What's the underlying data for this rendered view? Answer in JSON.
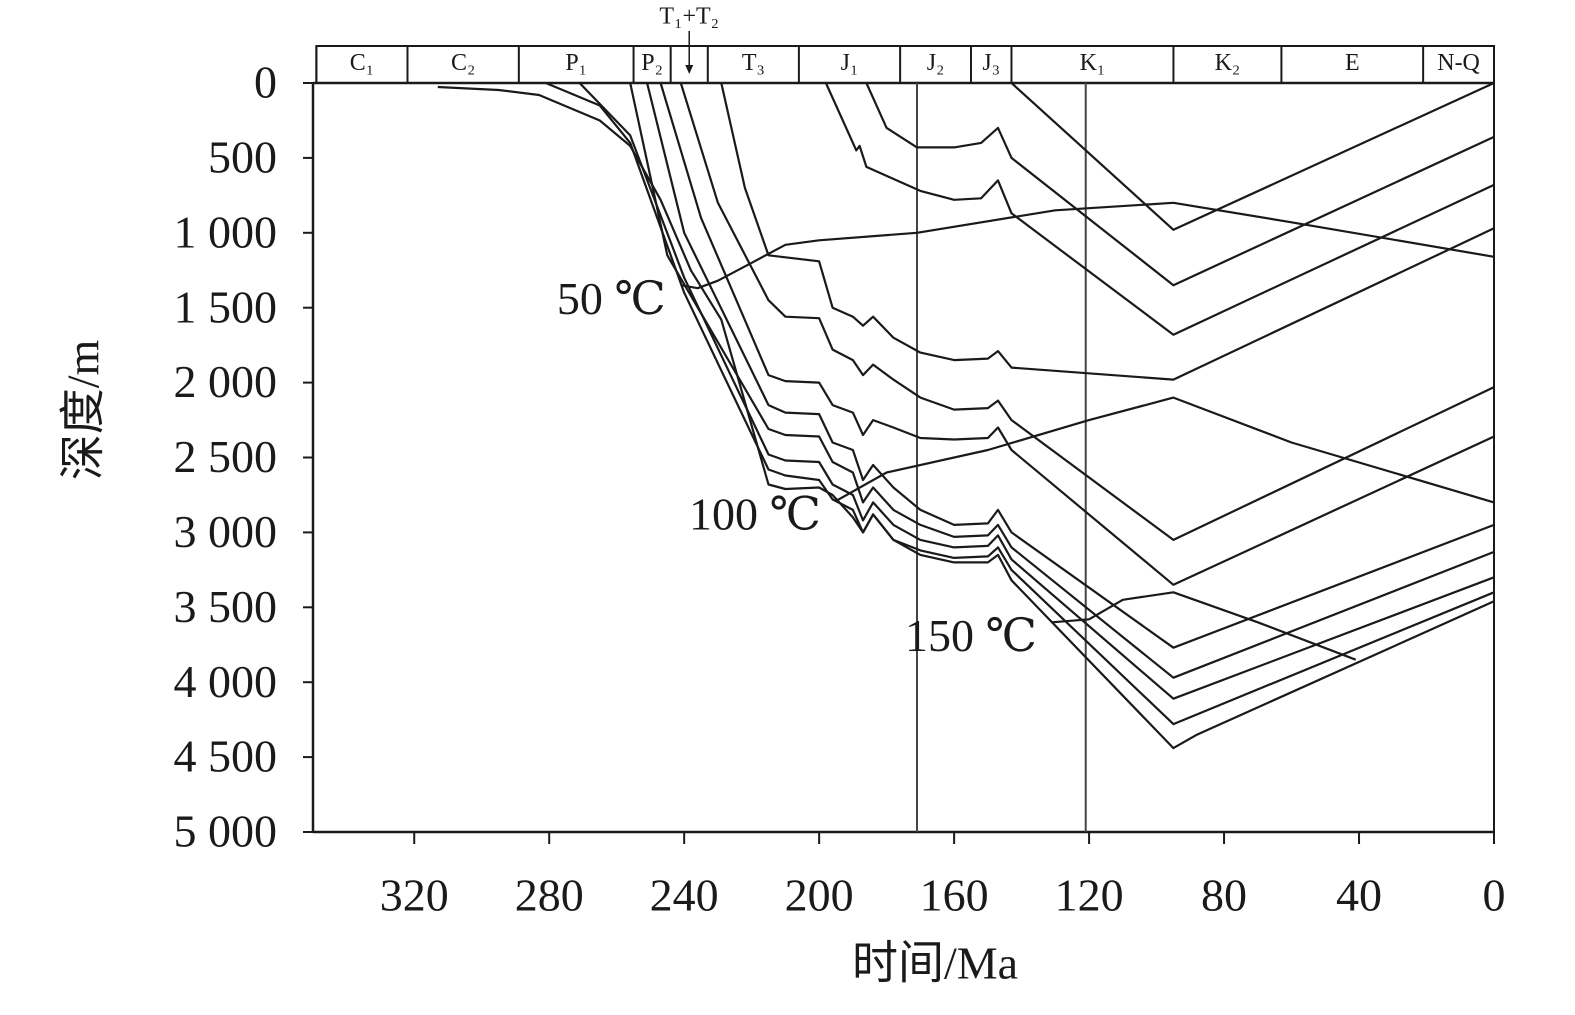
{
  "chart_data": {
    "type": "line",
    "x_label": "时间/Ma",
    "y_label": "深度/m",
    "xlim": [
      350,
      0
    ],
    "ylim": [
      0,
      5000
    ],
    "y_inverted": true,
    "xticks": [
      320,
      280,
      240,
      200,
      160,
      120,
      80,
      40,
      0
    ],
    "yticks": [
      0,
      500,
      {
        "value": 1000,
        "label": "1 000"
      },
      {
        "value": 1500,
        "label": "1 500"
      },
      {
        "value": 2000,
        "label": "2 000"
      },
      {
        "value": 2500,
        "label": "2 500"
      },
      {
        "value": 3000,
        "label": "3 000"
      },
      {
        "value": 3500,
        "label": "3 500"
      },
      {
        "value": 4000,
        "label": "4 000"
      },
      {
        "value": 4500,
        "label": "4 500"
      },
      {
        "value": 5000,
        "label": "5 000"
      }
    ],
    "stage_names": [
      "C₁",
      "C₂",
      "P₁",
      "P₂",
      "T₁+T₂",
      "T₃",
      "J₁",
      "J₂",
      "J₃",
      "K₁",
      "K₂",
      "E",
      "N-Q"
    ],
    "stage_boundaries": [
      349,
      322,
      289,
      255,
      244,
      233,
      206,
      176,
      155,
      143,
      95,
      63,
      21,
      0
    ],
    "reference_lines_x": [
      171,
      121
    ],
    "color": "#1a1a1a",
    "burial_curves": [
      {
        "x": [
          143,
          95,
          0
        ],
        "values": [
          0,
          980,
          0
        ]
      },
      {
        "x": [
          186,
          180,
          171,
          160,
          152,
          147,
          143,
          95,
          0
        ],
        "values": [
          0,
          300,
          430,
          430,
          400,
          300,
          500,
          1350,
          360
        ]
      },
      {
        "x": [
          198,
          189,
          188,
          186,
          180,
          170,
          160,
          152,
          147,
          143,
          95,
          0
        ],
        "values": [
          0,
          450,
          420,
          560,
          620,
          720,
          780,
          770,
          650,
          870,
          1680,
          680
        ]
      },
      {
        "x": [
          229,
          222,
          215,
          200,
          196,
          190,
          187,
          184,
          178,
          170,
          160,
          150,
          147,
          143,
          95,
          0
        ],
        "values": [
          0,
          700,
          1150,
          1190,
          1500,
          1560,
          1620,
          1560,
          1700,
          1800,
          1850,
          1840,
          1790,
          1900,
          1980,
          970
        ]
      },
      {
        "x": [
          241,
          230,
          215,
          210,
          200,
          196,
          190,
          187,
          184,
          178,
          170,
          160,
          150,
          147,
          143,
          95,
          0
        ],
        "values": [
          0,
          800,
          1450,
          1560,
          1570,
          1780,
          1850,
          1950,
          1880,
          1980,
          2100,
          2180,
          2170,
          2120,
          2250,
          3050,
          2030
        ]
      },
      {
        "x": [
          247,
          235,
          215,
          210,
          200,
          196,
          190,
          187,
          184,
          178,
          170,
          160,
          150,
          147,
          143,
          95,
          0
        ],
        "values": [
          0,
          900,
          1950,
          1990,
          2000,
          2150,
          2200,
          2350,
          2250,
          2300,
          2370,
          2380,
          2370,
          2300,
          2450,
          3350,
          2360
        ]
      },
      {
        "x": [
          251,
          240,
          215,
          210,
          200,
          196,
          190,
          187,
          184,
          178,
          170,
          160,
          150,
          147,
          143,
          95,
          0
        ],
        "values": [
          0,
          1000,
          2150,
          2200,
          2210,
          2400,
          2450,
          2650,
          2550,
          2700,
          2850,
          2950,
          2940,
          2850,
          3000,
          3770,
          2950
        ]
      },
      {
        "x": [
          256,
          245,
          215,
          210,
          200,
          196,
          190,
          187,
          184,
          178,
          170,
          160,
          150,
          147,
          143,
          95,
          0
        ],
        "values": [
          0,
          1150,
          2310,
          2350,
          2360,
          2530,
          2600,
          2800,
          2700,
          2850,
          2950,
          3030,
          3020,
          2950,
          3100,
          3970,
          3130
        ]
      },
      {
        "x": [
          271,
          256,
          240,
          215,
          210,
          200,
          196,
          190,
          187,
          184,
          178,
          170,
          160,
          150,
          147,
          143,
          95,
          0
        ],
        "values": [
          0,
          350,
          1300,
          2480,
          2520,
          2530,
          2680,
          2750,
          2920,
          2800,
          2950,
          3050,
          3100,
          3090,
          3020,
          3180,
          4110,
          3300
        ]
      },
      {
        "x": [
          281,
          265,
          256,
          240,
          215,
          210,
          200,
          196,
          190,
          187,
          184,
          178,
          170,
          160,
          150,
          147,
          143,
          95,
          0
        ],
        "values": [
          0,
          150,
          400,
          1400,
          2580,
          2620,
          2650,
          2780,
          2850,
          3000,
          2880,
          3050,
          3120,
          3170,
          3160,
          3100,
          3250,
          4280,
          3400
        ]
      },
      {
        "x": [
          313,
          295,
          283,
          265,
          256,
          247,
          238,
          229,
          215,
          210,
          200,
          196,
          190,
          187,
          184,
          178,
          170,
          160,
          150,
          147,
          143,
          95,
          88,
          0
        ],
        "values": [
          27,
          47,
          80,
          250,
          420,
          780,
          1250,
          1580,
          2680,
          2710,
          2700,
          2750,
          2900,
          3000,
          2880,
          3050,
          3150,
          3200,
          3200,
          3150,
          3320,
          4440,
          4350,
          3460
        ]
      }
    ],
    "series": [
      {
        "name": "50 ℃",
        "x": [
          241,
          236,
          230,
          220,
          210,
          200,
          171,
          130,
          95,
          60,
          0
        ],
        "values": [
          1350,
          1370,
          1320,
          1200,
          1080,
          1050,
          1000,
          850,
          800,
          930,
          1160
        ]
      },
      {
        "name": "100 ℃",
        "x": [
          195,
          180,
          150,
          120,
          95,
          60,
          0
        ],
        "values": [
          2790,
          2600,
          2450,
          2250,
          2100,
          2400,
          2800
        ]
      },
      {
        "name": "150 ℃",
        "x": [
          131,
          120,
          110,
          95,
          70,
          41
        ],
        "values": [
          3600,
          3580,
          3450,
          3400,
          3600,
          3850
        ]
      }
    ]
  }
}
